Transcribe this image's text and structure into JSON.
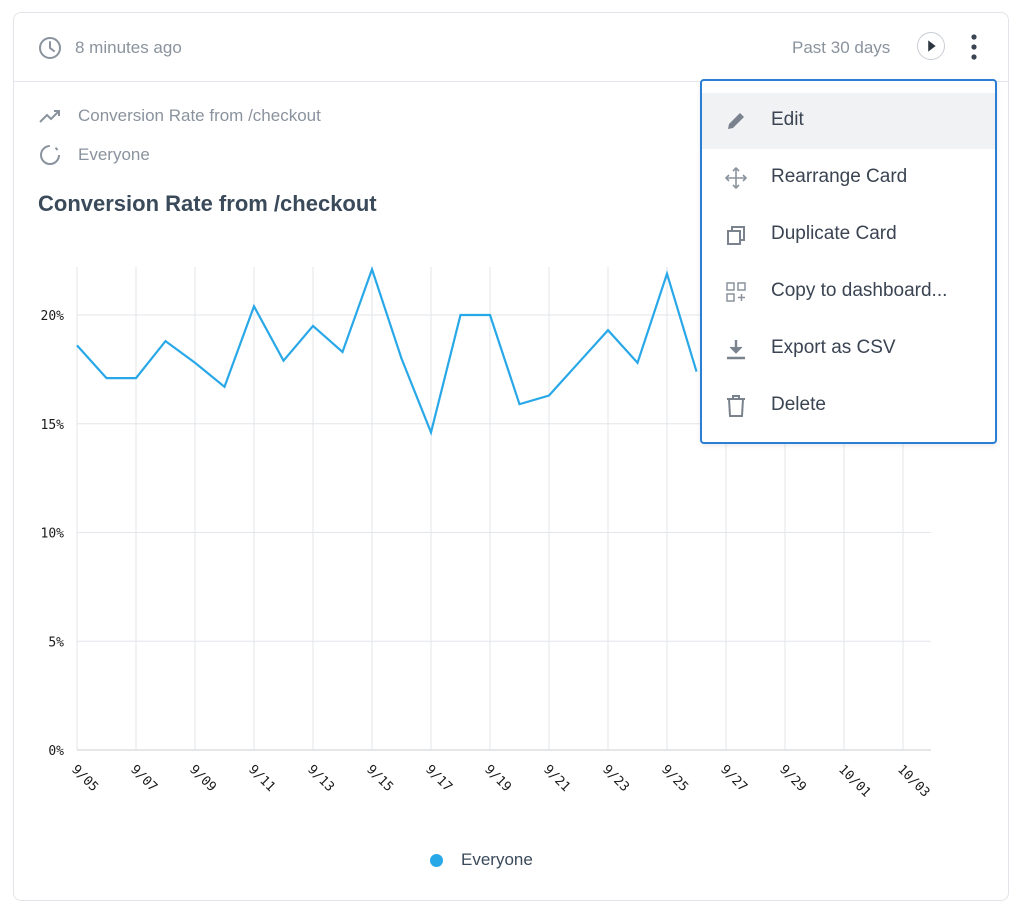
{
  "header": {
    "updated": "8 minutes ago",
    "range": "Past 30 days",
    "icons": [
      "clock-icon",
      "play-icon",
      "kebab-menu-icon"
    ]
  },
  "meta": {
    "metric": "Conversion Rate from /checkout",
    "segment": "Everyone"
  },
  "title": "Conversion Rate from /checkout",
  "menu": {
    "items": [
      {
        "label": "Edit",
        "icon": "pencil-icon"
      },
      {
        "label": "Rearrange Card",
        "icon": "move-icon"
      },
      {
        "label": "Duplicate Card",
        "icon": "duplicate-icon"
      },
      {
        "label": "Copy to dashboard...",
        "icon": "dashboard-add-icon"
      },
      {
        "label": "Export as CSV",
        "icon": "download-icon"
      },
      {
        "label": "Delete",
        "icon": "trash-icon"
      }
    ]
  },
  "chart_data": {
    "type": "line",
    "title": "Conversion Rate from /checkout",
    "xlabel": "",
    "ylabel": "",
    "x": [
      "9/05",
      "9/06",
      "9/07",
      "9/08",
      "9/09",
      "9/10",
      "9/11",
      "9/12",
      "9/13",
      "9/14",
      "9/15",
      "9/16",
      "9/17",
      "9/18",
      "9/19",
      "9/20",
      "9/21",
      "9/22",
      "9/23",
      "9/24",
      "9/25",
      "9/26"
    ],
    "x_ticks": [
      "9/05",
      "9/07",
      "9/09",
      "9/11",
      "9/13",
      "9/15",
      "9/17",
      "9/19",
      "9/21",
      "9/23",
      "9/25",
      "9/27",
      "9/29",
      "10/01",
      "10/03"
    ],
    "y_ticks": [
      "0%",
      "5%",
      "10%",
      "15%",
      "20%"
    ],
    "ylim": [
      0,
      22
    ],
    "series": [
      {
        "name": "Everyone",
        "color": "#29a8e8",
        "values": [
          18.6,
          17.1,
          17.1,
          18.8,
          17.8,
          16.7,
          20.4,
          17.9,
          19.5,
          18.3,
          22.1,
          18.0,
          14.6,
          20.0,
          20.0,
          15.9,
          16.3,
          17.8,
          19.3,
          17.8,
          21.9,
          17.4
        ]
      }
    ],
    "legend": "bottom-center",
    "grid": true
  }
}
